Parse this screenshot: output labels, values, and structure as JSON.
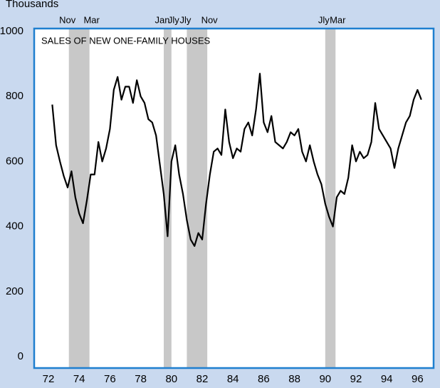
{
  "chart_data": {
    "type": "line",
    "title": "SALES OF NEW ONE-FAMILY HOUSES",
    "y_label": "Thousands",
    "x": [
      1972.75,
      1973.0,
      1973.25,
      1973.5,
      1973.75,
      1974.0,
      1974.25,
      1974.5,
      1974.75,
      1975.0,
      1975.25,
      1975.5,
      1975.75,
      1976.0,
      1976.25,
      1976.5,
      1976.75,
      1977.0,
      1977.25,
      1977.5,
      1977.75,
      1978.0,
      1978.25,
      1978.5,
      1978.75,
      1979.0,
      1979.25,
      1979.5,
      1979.75,
      1980.0,
      1980.25,
      1980.5,
      1980.75,
      1981.0,
      1981.25,
      1981.5,
      1981.75,
      1982.0,
      1982.25,
      1982.5,
      1982.75,
      1983.0,
      1983.25,
      1983.5,
      1983.75,
      1984.0,
      1984.25,
      1984.5,
      1984.75,
      1985.0,
      1985.25,
      1985.5,
      1985.75,
      1986.0,
      1986.25,
      1986.5,
      1986.75,
      1987.0,
      1987.25,
      1987.5,
      1987.75,
      1988.0,
      1988.25,
      1988.5,
      1988.75,
      1989.0,
      1989.25,
      1989.5,
      1989.75,
      1990.0,
      1990.25,
      1990.5,
      1990.75,
      1991.0,
      1991.25,
      1991.5,
      1991.75,
      1992.0,
      1992.25,
      1992.5,
      1992.75,
      1993.0,
      1993.25,
      1993.5,
      1993.75,
      1994.0,
      1994.25,
      1994.5,
      1994.75,
      1995.0,
      1995.25,
      1995.5,
      1995.75,
      1996.0,
      1996.25,
      1996.5,
      1996.75
    ],
    "series": [
      {
        "color": "#000000",
        "values": [
          775,
          650,
          600,
          555,
          520,
          570,
          490,
          440,
          410,
          480,
          560,
          560,
          660,
          600,
          640,
          700,
          820,
          860,
          790,
          830,
          830,
          780,
          850,
          800,
          780,
          730,
          720,
          680,
          590,
          500,
          370,
          600,
          650,
          560,
          500,
          420,
          360,
          340,
          380,
          360,
          470,
          560,
          630,
          640,
          620,
          760,
          660,
          610,
          640,
          630,
          700,
          720,
          680,
          760,
          870,
          720,
          690,
          740,
          660,
          650,
          640,
          660,
          690,
          680,
          700,
          630,
          600,
          650,
          600,
          560,
          530,
          470,
          430,
          400,
          490,
          510,
          500,
          550,
          650,
          600,
          630,
          610,
          620,
          660,
          780,
          700,
          680,
          660,
          640,
          580,
          640,
          680,
          720,
          740,
          790,
          820,
          790
        ]
      }
    ],
    "xlim": [
      1972,
      1997
    ],
    "xticks": [
      {
        "value": 1972,
        "label": "72"
      },
      {
        "value": 1974,
        "label": "74"
      },
      {
        "value": 1976,
        "label": "76"
      },
      {
        "value": 1978,
        "label": "78"
      },
      {
        "value": 1980,
        "label": "80"
      },
      {
        "value": 1982,
        "label": "82"
      },
      {
        "value": 1984,
        "label": "84"
      },
      {
        "value": 1986,
        "label": "86"
      },
      {
        "value": 1988,
        "label": "88"
      },
      {
        "value": 1990,
        "label": "90"
      },
      {
        "value": 1992,
        "label": "92"
      },
      {
        "value": 1994,
        "label": "94"
      },
      {
        "value": 1996,
        "label": "96"
      }
    ],
    "ylim": [
      0,
      1000
    ],
    "yticks": [
      0,
      200,
      400,
      600,
      800,
      1000
    ],
    "recessions": [
      {
        "start": 1973.83,
        "end": 1975.17,
        "start_label": "Nov",
        "end_label": "Mar"
      },
      {
        "start": 1980.0,
        "end": 1980.5,
        "start_label": "Jan",
        "end_label": "Jly"
      },
      {
        "start": 1981.5,
        "end": 1982.83,
        "start_label": "Jly",
        "end_label": "Nov"
      },
      {
        "start": 1990.5,
        "end": 1991.17,
        "start_label": "Jly",
        "end_label": "Mar"
      }
    ],
    "recession_color": "#c8c8c8"
  }
}
